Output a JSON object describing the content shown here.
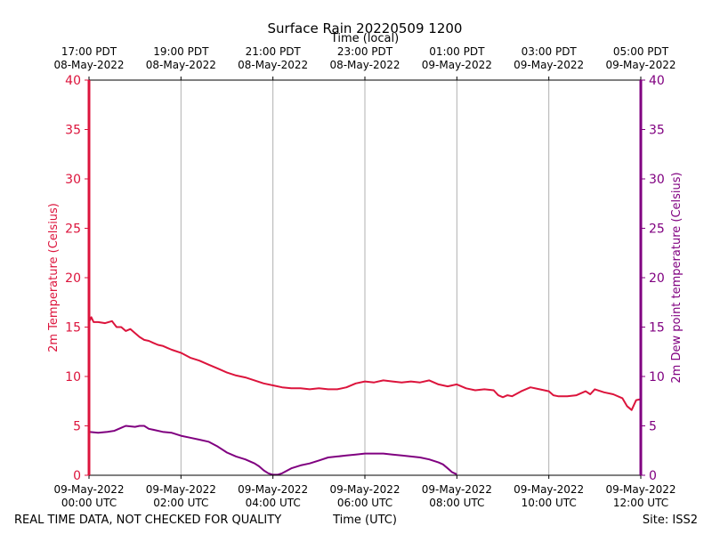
{
  "chart_data": {
    "type": "line",
    "title": "Surface Rain 20220509 1200",
    "top_axis_label": "Time (local)",
    "xlabel": "Time (UTC)",
    "ylabel_left": "2m Temperature (Celsius)",
    "ylabel_right": "2m Dew point temperature (Celsius)",
    "footer_left": "REAL TIME DATA, NOT CHECKED FOR QUALITY",
    "footer_right": "Site: ISS2",
    "xlim_hours": [
      0,
      12
    ],
    "ylim": [
      0,
      40
    ],
    "yticks": [
      "0",
      "5",
      "10",
      "15",
      "20",
      "25",
      "30",
      "35",
      "40"
    ],
    "grid": "vertical",
    "colors": {
      "left_axis": "#dc143c",
      "right_axis": "#800080",
      "temperature": "#dc143c",
      "dewpoint": "#800080",
      "grid": "#b0b0b0"
    },
    "xticks_bottom": [
      {
        "h": 0,
        "line1": "09-May-2022",
        "line2": "00:00 UTC"
      },
      {
        "h": 2,
        "line1": "09-May-2022",
        "line2": "02:00 UTC"
      },
      {
        "h": 4,
        "line1": "09-May-2022",
        "line2": "04:00 UTC"
      },
      {
        "h": 6,
        "line1": "09-May-2022",
        "line2": "06:00 UTC"
      },
      {
        "h": 8,
        "line1": "09-May-2022",
        "line2": "08:00 UTC"
      },
      {
        "h": 10,
        "line1": "09-May-2022",
        "line2": "10:00 UTC"
      },
      {
        "h": 12,
        "line1": "09-May-2022",
        "line2": "12:00 UTC"
      }
    ],
    "xticks_top": [
      {
        "h": 0,
        "line1": "17:00 PDT",
        "line2": "08-May-2022"
      },
      {
        "h": 2,
        "line1": "19:00 PDT",
        "line2": "08-May-2022"
      },
      {
        "h": 4,
        "line1": "21:00 PDT",
        "line2": "08-May-2022"
      },
      {
        "h": 6,
        "line1": "23:00 PDT",
        "line2": "08-May-2022"
      },
      {
        "h": 8,
        "line1": "01:00 PDT",
        "line2": "09-May-2022"
      },
      {
        "h": 10,
        "line1": "03:00 PDT",
        "line2": "09-May-2022"
      },
      {
        "h": 12,
        "line1": "05:00 PDT",
        "line2": "09-May-2022"
      }
    ],
    "series": [
      {
        "name": "2m Temperature",
        "axis": "left",
        "x": [
          0.0,
          0.05,
          0.1,
          0.2,
          0.35,
          0.5,
          0.6,
          0.7,
          0.8,
          0.9,
          1.0,
          1.1,
          1.2,
          1.3,
          1.4,
          1.5,
          1.6,
          1.7,
          1.8,
          2.0,
          2.2,
          2.4,
          2.6,
          2.8,
          3.0,
          3.2,
          3.4,
          3.6,
          3.8,
          4.0,
          4.2,
          4.4,
          4.6,
          4.8,
          5.0,
          5.2,
          5.4,
          5.6,
          5.8,
          6.0,
          6.2,
          6.4,
          6.6,
          6.8,
          7.0,
          7.2,
          7.4,
          7.6,
          7.8,
          8.0,
          8.2,
          8.4,
          8.6,
          8.8,
          8.9,
          9.0,
          9.1,
          9.2,
          9.4,
          9.6,
          9.8,
          10.0,
          10.1,
          10.2,
          10.4,
          10.6,
          10.8,
          10.9,
          11.0,
          11.2,
          11.4,
          11.6,
          11.7,
          11.8,
          11.9,
          12.0
        ],
        "values": [
          15.5,
          16.0,
          15.5,
          15.5,
          15.4,
          15.6,
          15.0,
          15.0,
          14.6,
          14.8,
          14.4,
          14.0,
          13.7,
          13.6,
          13.4,
          13.2,
          13.1,
          12.9,
          12.7,
          12.4,
          11.9,
          11.6,
          11.2,
          10.8,
          10.4,
          10.1,
          9.9,
          9.6,
          9.3,
          9.1,
          8.9,
          8.8,
          8.8,
          8.7,
          8.8,
          8.7,
          8.7,
          8.9,
          9.3,
          9.5,
          9.4,
          9.6,
          9.5,
          9.4,
          9.5,
          9.4,
          9.6,
          9.2,
          9.0,
          9.2,
          8.8,
          8.6,
          8.7,
          8.6,
          8.1,
          7.9,
          8.1,
          8.0,
          8.5,
          8.9,
          8.7,
          8.5,
          8.1,
          8.0,
          8.0,
          8.1,
          8.5,
          8.2,
          8.7,
          8.4,
          8.2,
          7.8,
          7.0,
          6.6,
          7.6,
          7.7
        ]
      },
      {
        "name": "2m Dew point temperature",
        "axis": "right",
        "x": [
          0.0,
          0.2,
          0.4,
          0.55,
          0.7,
          0.8,
          1.0,
          1.1,
          1.2,
          1.3,
          1.4,
          1.6,
          1.8,
          2.0,
          2.2,
          2.4,
          2.6,
          2.8,
          3.0,
          3.2,
          3.4,
          3.6,
          3.7,
          3.8,
          3.9,
          4.0,
          4.1,
          4.2,
          4.4,
          4.6,
          4.8,
          5.0,
          5.2,
          5.4,
          5.6,
          5.8,
          6.0,
          6.2,
          6.4,
          6.6,
          6.8,
          7.0,
          7.2,
          7.4,
          7.6,
          7.7,
          7.8,
          7.9,
          8.0
        ],
        "values": [
          4.4,
          4.3,
          4.4,
          4.5,
          4.8,
          5.0,
          4.9,
          5.0,
          5.0,
          4.7,
          4.6,
          4.4,
          4.3,
          4.0,
          3.8,
          3.6,
          3.4,
          2.9,
          2.3,
          1.9,
          1.6,
          1.2,
          0.9,
          0.5,
          0.2,
          0.05,
          0.05,
          0.2,
          0.7,
          1.0,
          1.2,
          1.5,
          1.8,
          1.9,
          2.0,
          2.1,
          2.2,
          2.2,
          2.2,
          2.1,
          2.0,
          1.9,
          1.8,
          1.6,
          1.3,
          1.1,
          0.7,
          0.3,
          0.1
        ]
      }
    ]
  }
}
